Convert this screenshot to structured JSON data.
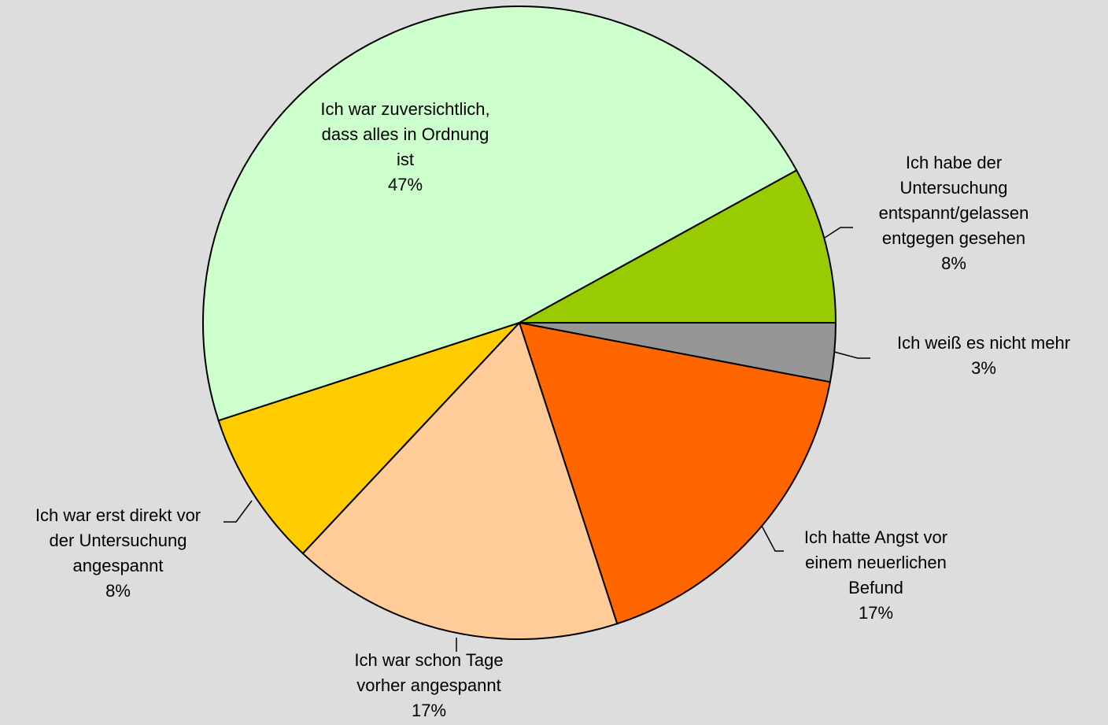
{
  "chart_data": {
    "type": "pie",
    "categories": [
      "Ich weiß es nicht mehr",
      "Ich hatte Angst vor\neinem neuerlichen\nBefund",
      "Ich war schon Tage\nvorher angespannt",
      "Ich war erst direkt vor\nder Untersuchung\nangespannt",
      "Ich war zuversichtlich,\ndass alles in Ordnung\nist",
      "Ich habe der\nUntersuchung\nentspannt/gelassen\nentgegen gesehen"
    ],
    "values": [
      3,
      17,
      17,
      8,
      47,
      8
    ],
    "value_labels": [
      "3%",
      "17%",
      "17%",
      "8%",
      "47%",
      "8%"
    ],
    "colors": [
      "#969696",
      "#ff6600",
      "#ffcc99",
      "#ffcc00",
      "#ccffcc",
      "#99cc00"
    ]
  }
}
